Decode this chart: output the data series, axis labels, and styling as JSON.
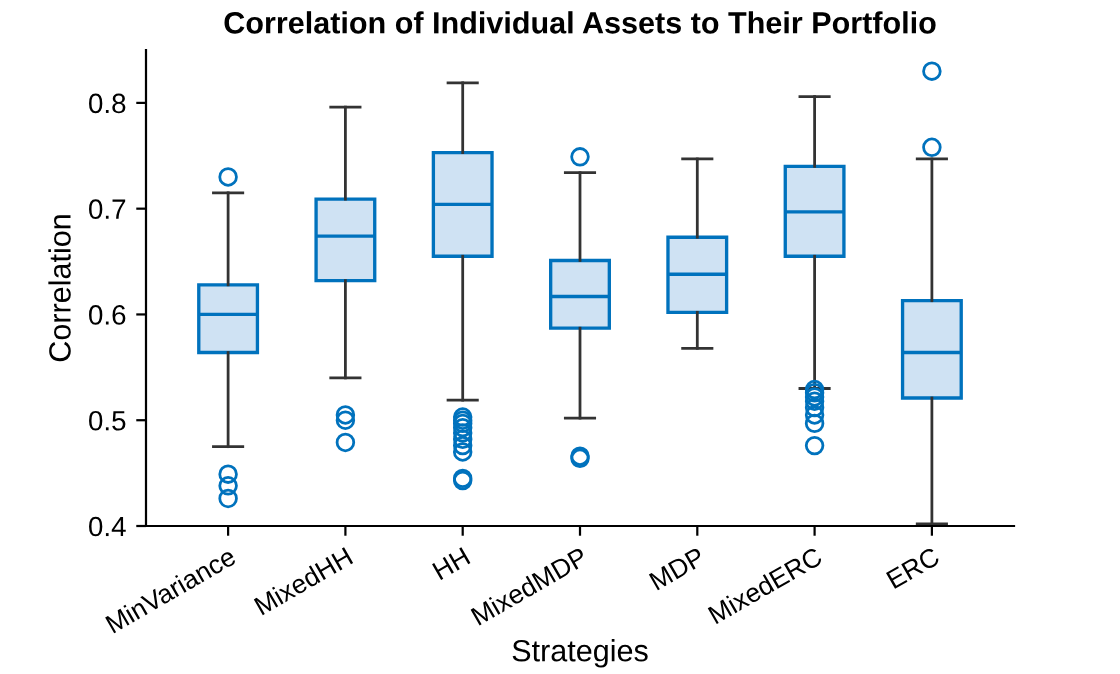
{
  "chart_data": {
    "type": "box",
    "title": "Correlation of Individual Assets to Their Portfolio",
    "xlabel": "Strategies",
    "ylabel": "Correlation",
    "categories": [
      "MinVariance",
      "MixedHH",
      "HH",
      "MixedMDP",
      "MDP",
      "MixedERC",
      "ERC"
    ],
    "ylim": [
      0.4,
      0.85
    ],
    "yticks": [
      0.4,
      0.5,
      0.6,
      0.7,
      0.8
    ],
    "grid": false,
    "color": "#0072bd",
    "boxes": [
      {
        "low": 0.475,
        "q1": 0.564,
        "median": 0.6,
        "q3": 0.628,
        "high": 0.715,
        "outliers": [
          0.73,
          0.449,
          0.438,
          0.426
        ]
      },
      {
        "low": 0.54,
        "q1": 0.632,
        "median": 0.674,
        "q3": 0.709,
        "high": 0.796,
        "outliers": [
          0.505,
          0.5,
          0.479
        ]
      },
      {
        "low": 0.519,
        "q1": 0.655,
        "median": 0.704,
        "q3": 0.753,
        "high": 0.819,
        "outliers": [
          0.503,
          0.5,
          0.497,
          0.493,
          0.488,
          0.482,
          0.476,
          0.47,
          0.445,
          0.443
        ]
      },
      {
        "low": 0.502,
        "q1": 0.587,
        "median": 0.617,
        "q3": 0.651,
        "high": 0.734,
        "outliers": [
          0.749,
          0.466,
          0.464
        ]
      },
      {
        "low": 0.568,
        "q1": 0.602,
        "median": 0.638,
        "q3": 0.673,
        "high": 0.747
      },
      {
        "low": 0.53,
        "q1": 0.655,
        "median": 0.697,
        "q3": 0.74,
        "high": 0.806,
        "outliers": [
          0.529,
          0.526,
          0.522,
          0.518,
          0.512,
          0.505,
          0.497,
          0.476
        ]
      },
      {
        "low": 0.402,
        "q1": 0.521,
        "median": 0.564,
        "q3": 0.613,
        "high": 0.747,
        "outliers": [
          0.83,
          0.758
        ]
      }
    ]
  }
}
